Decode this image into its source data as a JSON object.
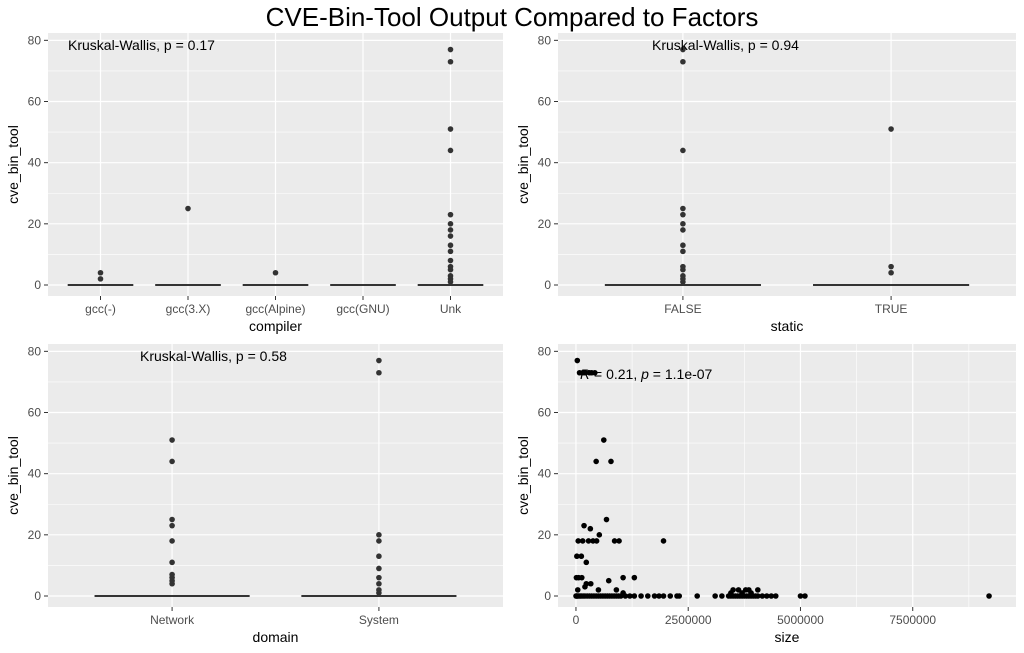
{
  "title": "CVE-Bin-Tool Output Compared to Factors",
  "colors": {
    "panel_bg": "#ebebeb",
    "grid": "#ffffff",
    "point": "#333333",
    "median": "#333333"
  },
  "chart_data": [
    {
      "type": "box",
      "xlabel": "compiler",
      "ylabel": "cve_bin_tool",
      "ylim": [
        0,
        80
      ],
      "yticks": [
        "0",
        "20",
        "40",
        "60",
        "80"
      ],
      "annotation": "Kruskal-Wallis, p = 0.17",
      "categories": [
        "gcc(-)",
        "gcc(3.X)",
        "gcc(Alpine)",
        "gcc(GNU)",
        "Unk"
      ],
      "median": [
        0,
        0,
        0,
        0,
        0
      ],
      "outliers": [
        [
          2,
          4
        ],
        [
          25
        ],
        [
          4
        ],
        [],
        [
          1,
          2,
          3,
          5,
          6,
          8,
          11,
          13,
          16,
          18,
          20,
          23,
          44,
          51,
          73,
          77
        ]
      ]
    },
    {
      "type": "box",
      "xlabel": "static",
      "ylabel": "cve_bin_tool",
      "ylim": [
        0,
        80
      ],
      "yticks": [
        "0",
        "20",
        "40",
        "60",
        "80"
      ],
      "annotation": "Kruskal-Wallis, p = 0.94",
      "categories": [
        "FALSE",
        "TRUE"
      ],
      "median": [
        0,
        0
      ],
      "outliers": [
        [
          1,
          2,
          3,
          5,
          6,
          11,
          13,
          18,
          20,
          23,
          25,
          44,
          73,
          77
        ],
        [
          4,
          6,
          51
        ]
      ]
    },
    {
      "type": "box",
      "xlabel": "domain",
      "ylabel": "cve_bin_tool",
      "ylim": [
        0,
        80
      ],
      "yticks": [
        "0",
        "20",
        "40",
        "60",
        "80"
      ],
      "annotation": "Kruskal-Wallis, p = 0.58",
      "categories": [
        "Network",
        "System"
      ],
      "median": [
        0,
        0
      ],
      "outliers": [
        [
          4,
          5,
          6,
          7,
          11,
          18,
          23,
          25,
          44,
          51
        ],
        [
          1,
          2,
          4,
          6,
          9,
          13,
          18,
          20,
          73,
          77
        ]
      ]
    },
    {
      "type": "scatter",
      "xlabel": "size",
      "ylabel": "cve_bin_tool",
      "ylim": [
        0,
        80
      ],
      "yticks": [
        "0",
        "20",
        "40",
        "60",
        "80"
      ],
      "xticks": [
        0,
        2500000,
        5000000,
        7500000
      ],
      "xtick_labels": [
        "0",
        "2500000",
        "5000000",
        "7500000"
      ],
      "annotation_r": "R",
      "annotation": " = 0.21, ",
      "annotation_p": "p",
      "annotation_p_value": " = 1.1e-07",
      "points": [
        [
          30000,
          77
        ],
        [
          80000,
          73
        ],
        [
          150000,
          73
        ],
        [
          200000,
          73
        ],
        [
          300000,
          73
        ],
        [
          350000,
          73
        ],
        [
          420000,
          73
        ],
        [
          620000,
          51
        ],
        [
          450000,
          44
        ],
        [
          780000,
          44
        ],
        [
          680000,
          25
        ],
        [
          180000,
          23
        ],
        [
          320000,
          22
        ],
        [
          50000,
          18
        ],
        [
          150000,
          18
        ],
        [
          280000,
          18
        ],
        [
          380000,
          18
        ],
        [
          460000,
          18
        ],
        [
          860000,
          18
        ],
        [
          960000,
          18
        ],
        [
          1950000,
          18
        ],
        [
          520000,
          20
        ],
        [
          20000,
          13
        ],
        [
          120000,
          13
        ],
        [
          230000,
          11
        ],
        [
          10000,
          6
        ],
        [
          60000,
          6
        ],
        [
          130000,
          6
        ],
        [
          1050000,
          6
        ],
        [
          1300000,
          6
        ],
        [
          730000,
          5
        ],
        [
          230000,
          4
        ],
        [
          330000,
          4
        ],
        [
          200000,
          3
        ],
        [
          40000,
          2
        ],
        [
          500000,
          2
        ],
        [
          900000,
          2
        ],
        [
          1050000,
          1
        ],
        [
          3500000,
          2
        ],
        [
          3620000,
          2
        ],
        [
          3780000,
          2
        ],
        [
          3850000,
          2
        ],
        [
          4050000,
          2
        ],
        [
          3450000,
          1
        ],
        [
          3700000,
          1
        ],
        [
          3900000,
          1
        ],
        [
          1000,
          0
        ],
        [
          15000,
          0
        ],
        [
          30000,
          0
        ],
        [
          55000,
          0
        ],
        [
          90000,
          0
        ],
        [
          120000,
          0
        ],
        [
          160000,
          0
        ],
        [
          200000,
          0
        ],
        [
          250000,
          0
        ],
        [
          300000,
          0
        ],
        [
          350000,
          0
        ],
        [
          400000,
          0
        ],
        [
          450000,
          0
        ],
        [
          500000,
          0
        ],
        [
          550000,
          0
        ],
        [
          600000,
          0
        ],
        [
          650000,
          0
        ],
        [
          700000,
          0
        ],
        [
          750000,
          0
        ],
        [
          800000,
          0
        ],
        [
          850000,
          0
        ],
        [
          900000,
          0
        ],
        [
          950000,
          0
        ],
        [
          1000000,
          0
        ],
        [
          1100000,
          0
        ],
        [
          1200000,
          0
        ],
        [
          1300000,
          0
        ],
        [
          1450000,
          0
        ],
        [
          1600000,
          0
        ],
        [
          1750000,
          0
        ],
        [
          1850000,
          0
        ],
        [
          1950000,
          0
        ],
        [
          2100000,
          0
        ],
        [
          2250000,
          0
        ],
        [
          2300000,
          0
        ],
        [
          2700000,
          0
        ],
        [
          3100000,
          0
        ],
        [
          3250000,
          0
        ],
        [
          3400000,
          0
        ],
        [
          3450000,
          0
        ],
        [
          3500000,
          0
        ],
        [
          3550000,
          0
        ],
        [
          3600000,
          0
        ],
        [
          3650000,
          0
        ],
        [
          3700000,
          0
        ],
        [
          3750000,
          0
        ],
        [
          3800000,
          0
        ],
        [
          3850000,
          0
        ],
        [
          3900000,
          0
        ],
        [
          3950000,
          0
        ],
        [
          4000000,
          0
        ],
        [
          4050000,
          0
        ],
        [
          4150000,
          0
        ],
        [
          4250000,
          0
        ],
        [
          4350000,
          0
        ],
        [
          4450000,
          0
        ],
        [
          5000000,
          0
        ],
        [
          5100000,
          0
        ],
        [
          9200000,
          0
        ]
      ]
    }
  ]
}
